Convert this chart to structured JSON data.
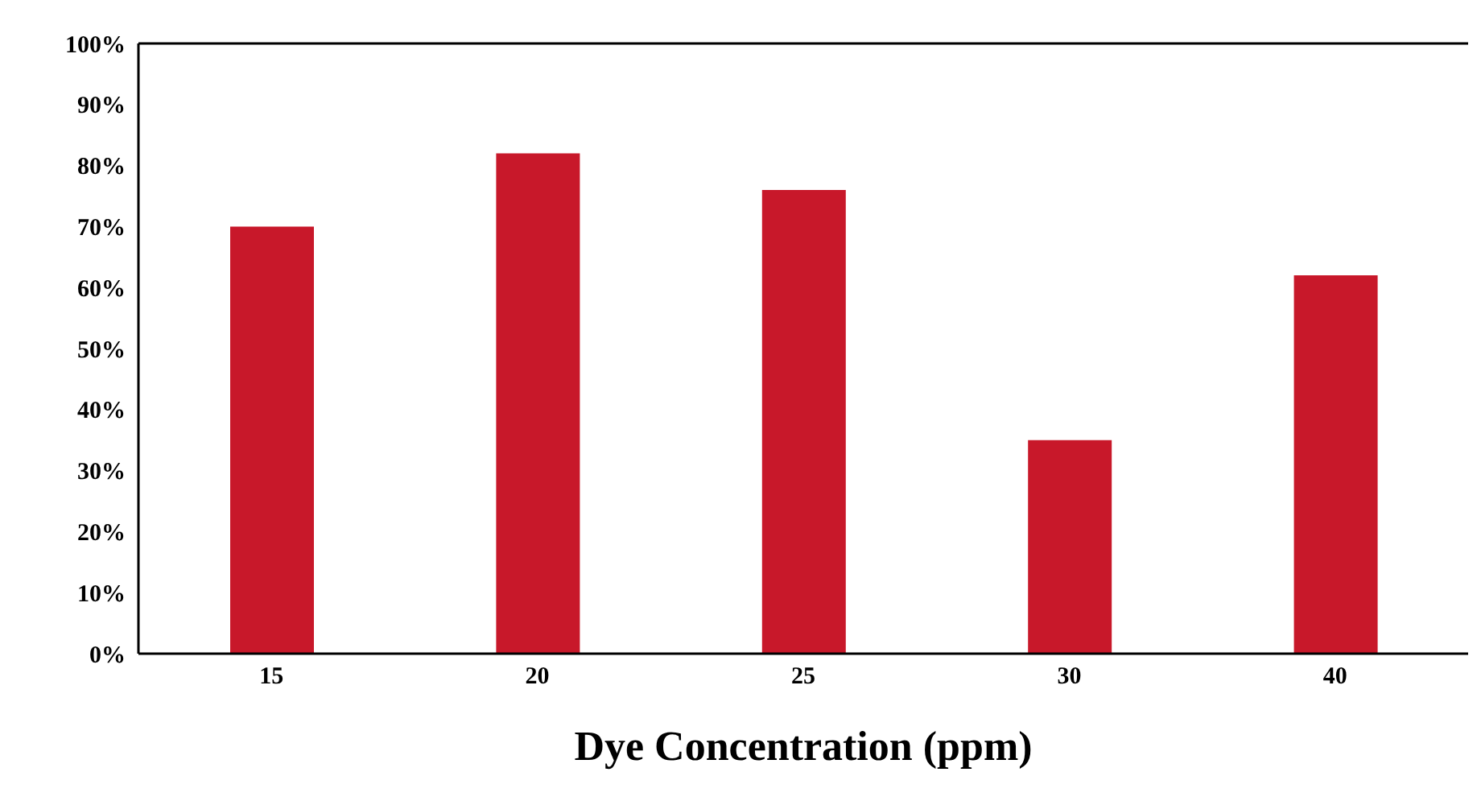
{
  "chart_data": {
    "type": "bar",
    "xlabel": "Dye Concentration (ppm)",
    "categories": [
      "15",
      "20",
      "25",
      "30",
      "40"
    ],
    "values": [
      70,
      82,
      76,
      35,
      62
    ],
    "color": "#c8182a",
    "ylim": [
      0,
      100
    ],
    "yticks": [
      {
        "value": 0,
        "label": "0%"
      },
      {
        "value": 10,
        "label": "10%"
      },
      {
        "value": 20,
        "label": "20%"
      },
      {
        "value": 30,
        "label": "30%"
      },
      {
        "value": 40,
        "label": "40%"
      },
      {
        "value": 50,
        "label": "50%"
      },
      {
        "value": 60,
        "label": "60%"
      },
      {
        "value": 70,
        "label": "70%"
      },
      {
        "value": 80,
        "label": "80%"
      },
      {
        "value": 90,
        "label": "90%"
      },
      {
        "value": 100,
        "label": "100%"
      }
    ],
    "grid": false,
    "legend": false
  }
}
